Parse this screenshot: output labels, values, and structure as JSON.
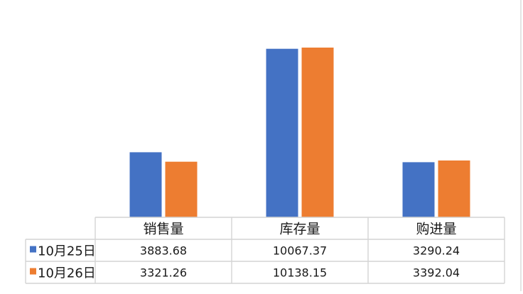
{
  "chart_data": {
    "type": "bar",
    "categories": [
      "销售量",
      "库存量",
      "购进量"
    ],
    "series": [
      {
        "name": "10月25日",
        "values": [
          3883.68,
          10067.37,
          3290.24
        ],
        "color": "#4472c4"
      },
      {
        "name": "10月26日",
        "values": [
          3321.26,
          10138.15,
          3392.04
        ],
        "color": "#ed7d31"
      }
    ],
    "value_labels": [
      [
        "3883.68",
        "10067.37",
        "3290.24"
      ],
      [
        "3321.26",
        "10138.15",
        "3392.04"
      ]
    ],
    "ylim": [
      0,
      10138.15
    ],
    "grid": false,
    "legend": "data-table-left",
    "title": "",
    "xlabel": "",
    "ylabel": ""
  }
}
